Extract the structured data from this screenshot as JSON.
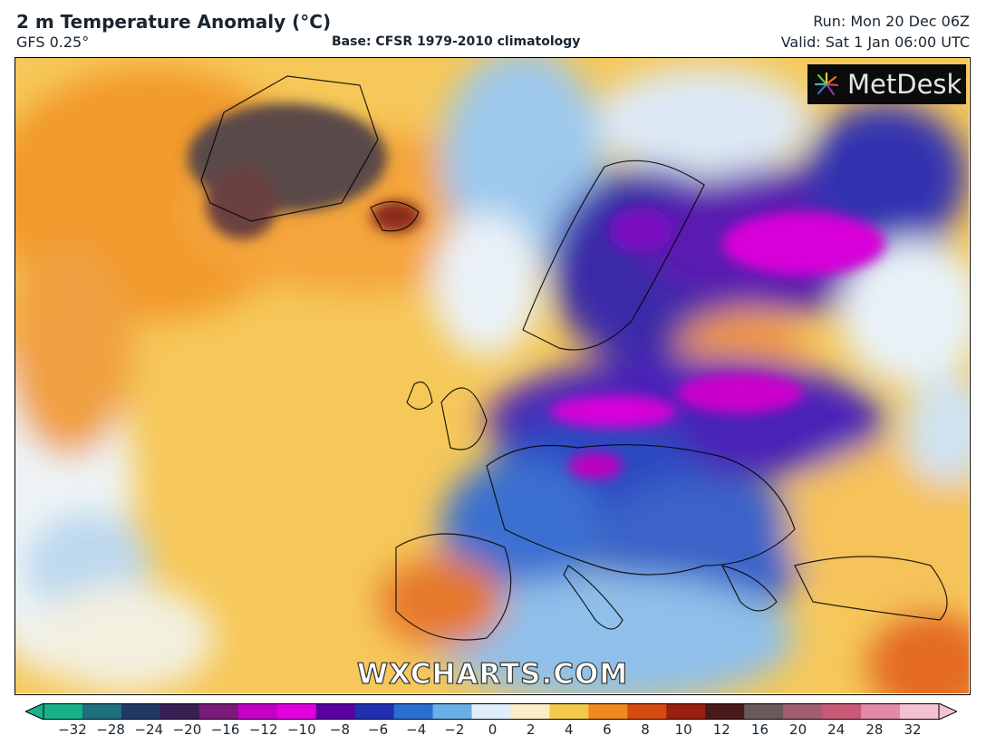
{
  "header": {
    "title": "2 m Temperature Anomaly (°C)",
    "model": "GFS 0.25°",
    "base": "Base: CFSR 1979-2010 climatology",
    "run": "Run: Mon 20 Dec 06Z",
    "valid": "Valid: Sat 1 Jan 06:00 UTC"
  },
  "map": {
    "logo_text": "MetDesk",
    "watermark": "WXCHARTS.COM"
  },
  "colorbar": {
    "ticks": [
      "−32",
      "−28",
      "−24",
      "−20",
      "−16",
      "−12",
      "−10",
      "−8",
      "−6",
      "−4",
      "−2",
      "0",
      "2",
      "4",
      "6",
      "8",
      "10",
      "12",
      "16",
      "20",
      "24",
      "28",
      "32"
    ],
    "colors": [
      "#1ab08a",
      "#1f6f7f",
      "#203a66",
      "#3a1f55",
      "#7a1a7a",
      "#c400c4",
      "#e000e0",
      "#5a00a0",
      "#2030b0",
      "#2a6fd0",
      "#6aaee6",
      "#dfeffa",
      "#fbeec6",
      "#f4c84a",
      "#f08a1e",
      "#d44a12",
      "#9a1f0e",
      "#4a1a1a",
      "#6a5a5a",
      "#a06070",
      "#c85a78",
      "#e28aa8",
      "#f2c2d2"
    ]
  }
}
